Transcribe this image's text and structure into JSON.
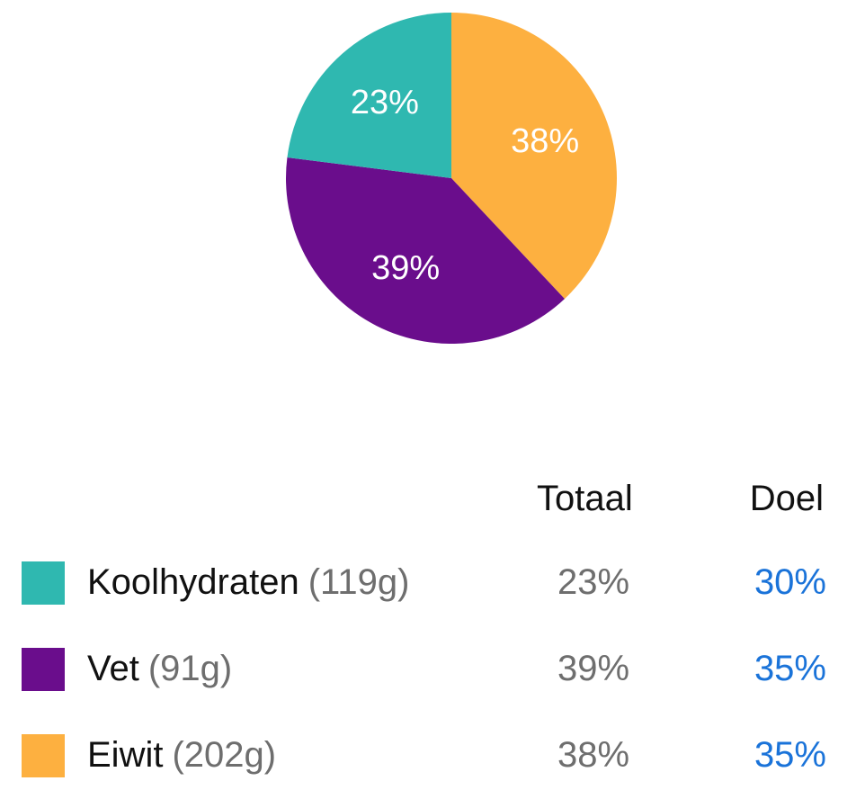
{
  "chart_data": {
    "type": "pie",
    "slices": [
      {
        "label": "Koolhydraten",
        "value": 23,
        "display": "23%",
        "color": "#2fb8b0"
      },
      {
        "label": "Eiwit",
        "value": 38,
        "display": "38%",
        "color": "#fdb040"
      },
      {
        "label": "Vet",
        "value": 39,
        "display": "39%",
        "color": "#6a0d8c"
      }
    ],
    "start": "top (12 o'clock)",
    "order": [
      "Eiwit",
      "Vet",
      "Koolhydraten"
    ],
    "direction": "clockwise"
  },
  "table": {
    "headers": {
      "total": "Totaal",
      "goal": "Doel"
    },
    "rows": [
      {
        "name": "Koolhydraten",
        "grams": "(119g)",
        "total": "23%",
        "goal": "30%",
        "color": "#2fb8b0"
      },
      {
        "name": "Vet",
        "grams": "(91g)",
        "total": "39%",
        "goal": "35%",
        "color": "#6a0d8c"
      },
      {
        "name": "Eiwit",
        "grams": "(202g)",
        "total": "38%",
        "goal": "35%",
        "color": "#fdb040"
      }
    ]
  }
}
